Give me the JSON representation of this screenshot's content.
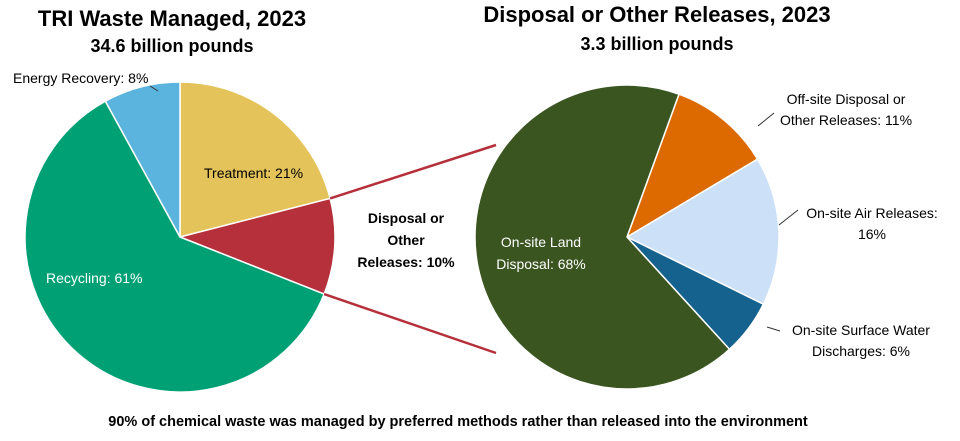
{
  "chart_data": [
    {
      "type": "pie",
      "title": "TRI Waste Managed, 2023",
      "subtitle": "34.6 billion pounds",
      "slices": [
        {
          "label": "Treatment",
          "text": "Treatment: 21%",
          "value": 21,
          "color": "#E4C45A"
        },
        {
          "label": "Disposal or Other Releases",
          "text_lines": [
            "Disposal or",
            "Other",
            "Releases: 10%"
          ],
          "value": 10,
          "color": "#B5303A"
        },
        {
          "label": "Recycling",
          "text": "Recycling: 61%",
          "value": 61,
          "color": "#00A075"
        },
        {
          "label": "Energy Recovery",
          "text": "Energy Recovery: 8%",
          "value": 8,
          "color": "#5AB4DE"
        }
      ]
    },
    {
      "type": "pie",
      "title": "Disposal or Other Releases, 2023",
      "subtitle": "3.3 billion pounds",
      "slices": [
        {
          "label": "Off-site Disposal or Other Releases",
          "text_lines": [
            "Off-site Disposal or",
            "Other Releases: 11%"
          ],
          "value": 11,
          "color": "#DD6A00"
        },
        {
          "label": "On-site Air Releases",
          "text_lines": [
            "On-site Air Releases:",
            "16%"
          ],
          "value": 16,
          "color": "#CCE0F7"
        },
        {
          "label": "On-site Surface Water Discharges",
          "text_lines": [
            "On-site Surface Water",
            "Discharges: 6%"
          ],
          "value": 6,
          "color": "#16628F"
        },
        {
          "label": "On-site Land Disposal",
          "text_lines": [
            "On-site Land",
            "Disposal: 68%"
          ],
          "value": 68,
          "color": "#3A5520"
        }
      ]
    }
  ],
  "footer": "90% of chemical waste was managed by preferred methods rather than released into the environment",
  "connector_color": "#B5303A"
}
